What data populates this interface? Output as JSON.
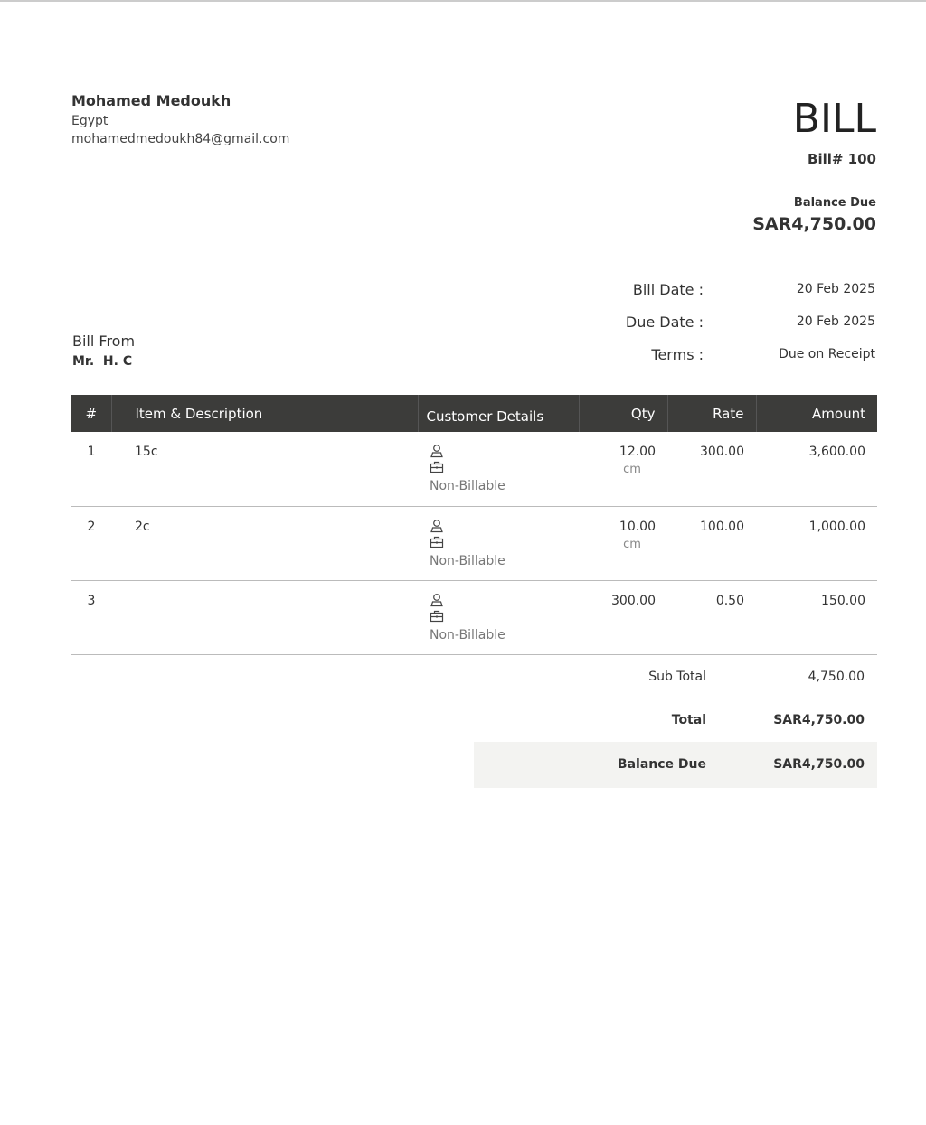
{
  "sender": {
    "name": "Mohamed Medoukh",
    "country": "Egypt",
    "email": "mohamedmedoukh84@gmail.com"
  },
  "doc": {
    "title": "BILL",
    "number": "Bill# 100",
    "balance_due_label": "Balance Due",
    "balance_due": "SAR4,750.00"
  },
  "meta": [
    {
      "label": "Bill Date :",
      "value": "20 Feb 2025"
    },
    {
      "label": "Due Date :",
      "value": "20 Feb 2025"
    },
    {
      "label": "Terms :",
      "value": "Due on Receipt"
    }
  ],
  "bill_from": {
    "label": "Bill From",
    "name": "Mr.  H. C"
  },
  "table": {
    "headers": [
      "#",
      "Item & Description",
      "Customer Details",
      "Qty",
      "Rate",
      "Amount"
    ],
    "rows": [
      {
        "n": "1",
        "item": "15c",
        "billing": "Non-Billable",
        "qty": "12.00",
        "unit": "cm",
        "rate": "300.00",
        "amount": "3,600.00"
      },
      {
        "n": "2",
        "item": "2c",
        "billing": "Non-Billable",
        "qty": "10.00",
        "unit": "cm",
        "rate": "100.00",
        "amount": "1,000.00"
      },
      {
        "n": "3",
        "item": "",
        "billing": "Non-Billable",
        "qty": "300.00",
        "unit": "",
        "rate": "0.50",
        "amount": "150.00"
      }
    ]
  },
  "totals": {
    "subtotal_label": "Sub Total",
    "subtotal": "4,750.00",
    "total_label": "Total",
    "total": "SAR4,750.00",
    "balance_label": "Balance Due",
    "balance": "SAR4,750.00"
  }
}
